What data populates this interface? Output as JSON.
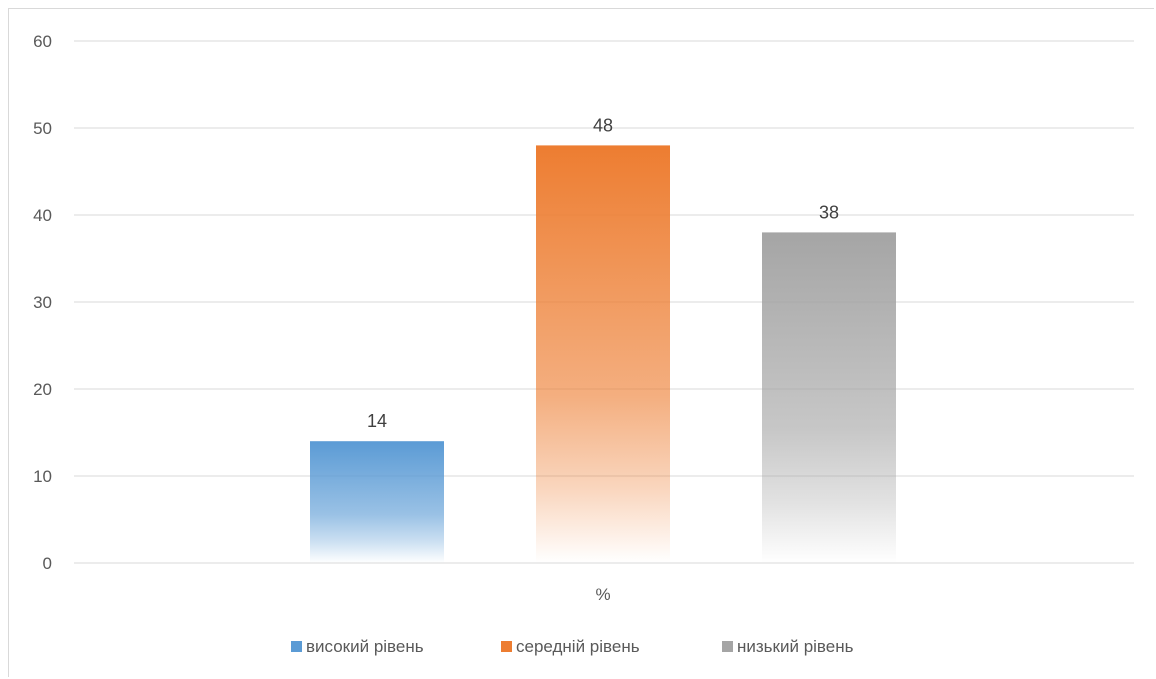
{
  "chart_data": {
    "type": "bar",
    "categories": [
      "%"
    ],
    "series": [
      {
        "name": "високий рівень",
        "values": [
          14
        ],
        "color": "#5b9bd5"
      },
      {
        "name": "середній рівень",
        "values": [
          48
        ],
        "color": "#ed7d31"
      },
      {
        "name": "низький рівень",
        "values": [
          38
        ],
        "color": "#a5a5a5"
      }
    ],
    "title": "",
    "xlabel": "",
    "ylabel": "",
    "ylim": [
      0,
      60
    ],
    "yticks": [
      0,
      10,
      20,
      30,
      40,
      50,
      60
    ],
    "grid": true,
    "legend_position": "bottom",
    "data_labels": true,
    "bar_fill": "vertical-gradient"
  }
}
